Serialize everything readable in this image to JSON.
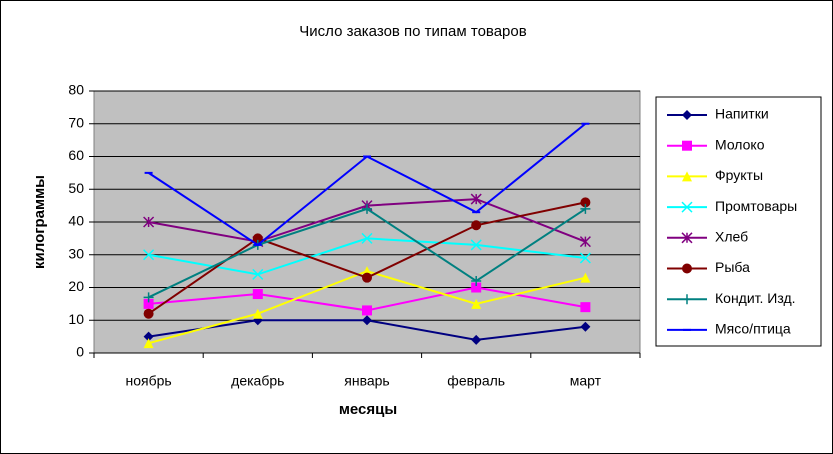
{
  "chart_data": {
    "type": "line",
    "title": "Число заказов по типам товаров",
    "x_label": "месяцы",
    "y_label": "килограммы",
    "categories": [
      "ноябрь",
      "декабрь",
      "январь",
      "февраль",
      "март"
    ],
    "ylim": [
      0,
      80
    ],
    "yticks": [
      0,
      10,
      20,
      30,
      40,
      50,
      60,
      70,
      80
    ],
    "grid": true,
    "legend": "right",
    "series": [
      {
        "name": "Напитки",
        "color": "#000080",
        "marker": "diamond",
        "values": [
          5,
          10,
          10,
          4,
          8
        ]
      },
      {
        "name": "Молоко",
        "color": "#ff00ff",
        "marker": "square",
        "values": [
          15,
          18,
          13,
          20,
          14
        ]
      },
      {
        "name": "Фрукты",
        "color": "#ffff00",
        "marker": "triangle",
        "values": [
          3,
          12,
          25,
          15,
          23
        ]
      },
      {
        "name": "Промтовары",
        "color": "#00ffff",
        "marker": "x",
        "values": [
          30,
          24,
          35,
          33,
          29
        ]
      },
      {
        "name": "Хлеб",
        "color": "#800080",
        "marker": "star",
        "values": [
          40,
          34,
          45,
          47,
          34
        ]
      },
      {
        "name": "Рыба",
        "color": "#800000",
        "marker": "circle",
        "values": [
          12,
          35,
          23,
          39,
          46
        ]
      },
      {
        "name": "Кондит. Изд.",
        "color": "#008080",
        "marker": "plus",
        "values": [
          17,
          33,
          44,
          22,
          44
        ]
      },
      {
        "name": "Мясо/птица",
        "color": "#0000ff",
        "marker": "dash",
        "values": [
          55,
          33,
          60,
          43,
          70
        ]
      }
    ]
  }
}
